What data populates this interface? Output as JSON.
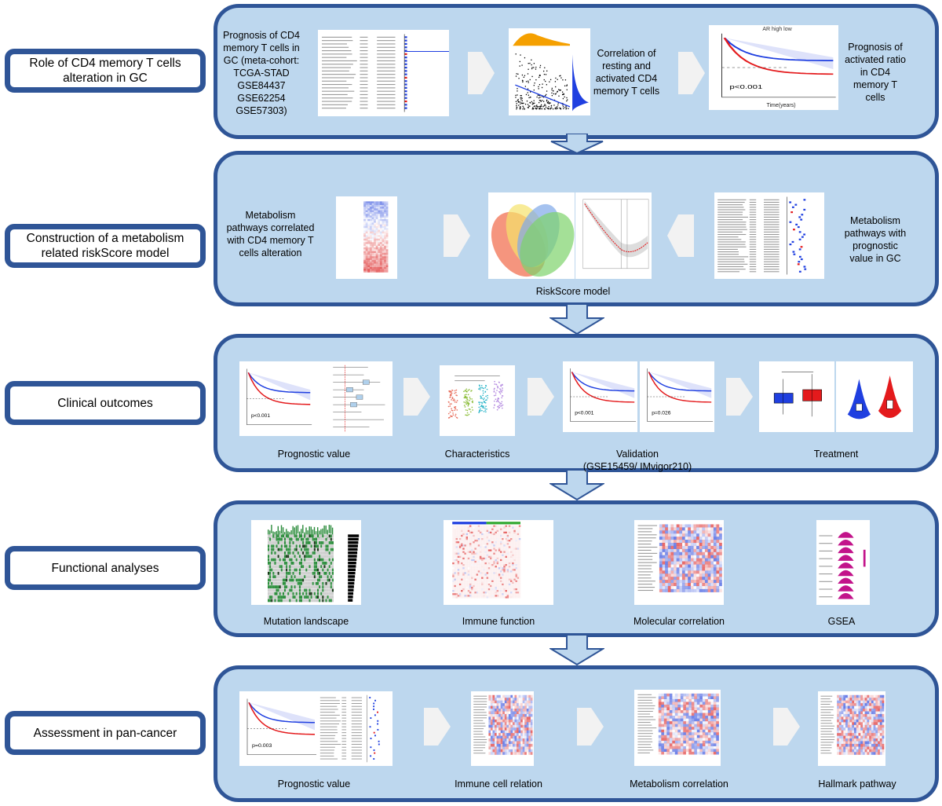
{
  "colors": {
    "panel": "#BDD7EE",
    "border": "#2F5597",
    "chevron": "#F2F2F2",
    "high": "#E41A1C",
    "low": "#1F3FE0"
  },
  "rows": [
    {
      "label": "Role of CD4 memory T cells alteration in GC",
      "texts": [
        "Prognosis of CD4 memory T cells in GC (meta-cohort: TCGA-STAD GSE84437 GSE62254 GSE57303)",
        "Correlation of resting and activated CD4 memory T cells",
        "Prognosis of activated ratio in CD4 memory T cells"
      ],
      "figure_texts": {
        "km_pvalue": "p<0.001",
        "km_xlabel": "Time(years)",
        "km_legend": "AR  high  low"
      }
    },
    {
      "label": "Construction of a metabolism related riskScore model",
      "texts": [
        "Metabolism pathways correlated with CD4 memory T cells alteration",
        "Metabolism pathways with prognostic value in GC"
      ],
      "captions": [
        "RiskScore model"
      ]
    },
    {
      "label": "Clinical outcomes",
      "captions": [
        "Prognostic value",
        "Characteristics",
        "Validation\n(GSE15459/ IMvigor210)",
        "Treatment"
      ],
      "figure_texts": {
        "p1": "p<0.001",
        "p2": "p<0.001",
        "p3": "p=0.026"
      }
    },
    {
      "label": "Functional analyses",
      "captions": [
        "Mutation landscape",
        "Immune function",
        "Molecular correlation",
        "GSEA"
      ]
    },
    {
      "label": "Assessment in pan-cancer",
      "captions": [
        "Prognostic value",
        "Immune cell relation",
        "Metabolism correlation",
        "Hallmark pathway"
      ],
      "figure_texts": {
        "p1": "p=0.003"
      }
    }
  ]
}
